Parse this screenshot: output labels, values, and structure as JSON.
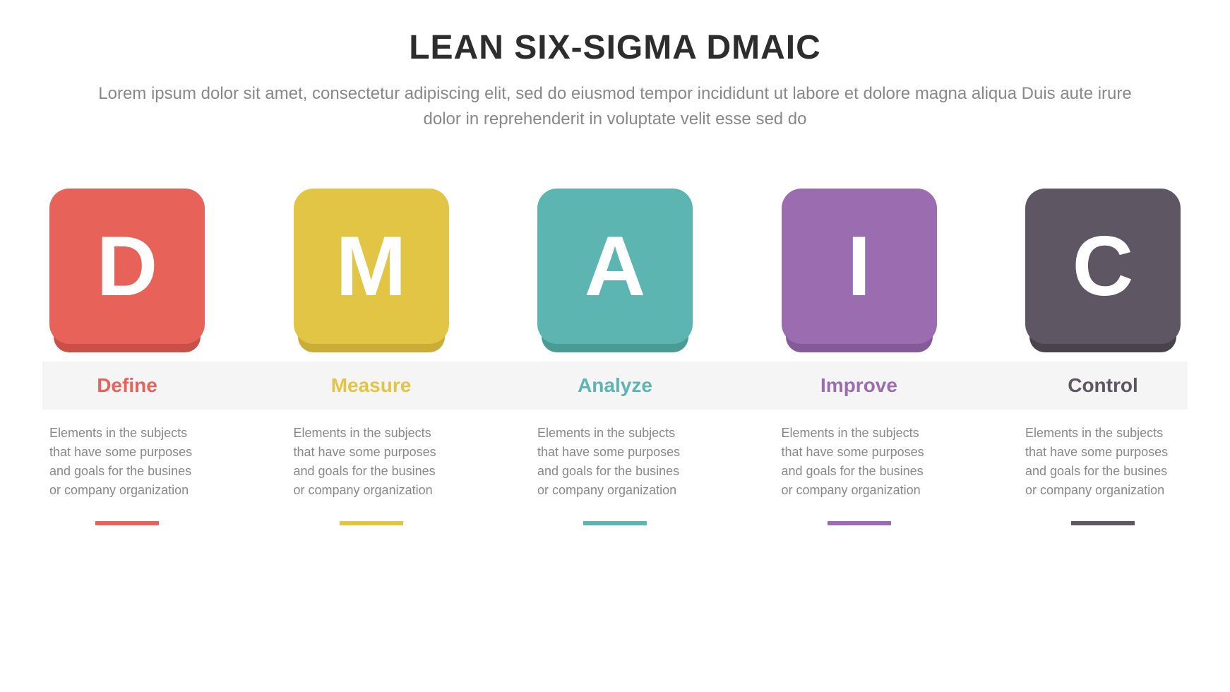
{
  "header": {
    "title": "LEAN SIX-SIGMA DMAIC",
    "subtitle": "Lorem ipsum dolor sit amet, consectetur adipiscing elit, sed do eiusmod tempor incididunt ut labore et dolore magna aliqua Duis aute irure dolor in reprehenderit in voluptate velit esse sed do"
  },
  "styling": {
    "background_color": "#ffffff",
    "title_color": "#2d2d2d",
    "title_fontsize": 48,
    "subtitle_color": "#888888",
    "subtitle_fontsize": 24,
    "label_band_bg": "#f5f5f5",
    "desc_color": "#888888",
    "card_letter_color": "#ffffff",
    "card_size": 220,
    "card_border_radius": 28,
    "card_letter_fontsize": 120,
    "label_fontsize": 28,
    "desc_fontsize": 18,
    "underline_width": 90,
    "underline_height": 6
  },
  "items": [
    {
      "letter": "D",
      "label": "Define",
      "description": "Elements in the subjects that have some purposes and goals for the  busines or company organization",
      "color": "#e7635a",
      "shadow_color": "#c94f47"
    },
    {
      "letter": "M",
      "label": "Measure",
      "description": "Elements in the subjects that have some purposes and goals for the  busines or company organization",
      "color": "#e3c545",
      "shadow_color": "#c9ad36"
    },
    {
      "letter": "A",
      "label": "Analyze",
      "description": "Elements in the subjects that have some purposes and goals for the  busines or company organization",
      "color": "#5cb5b0",
      "shadow_color": "#4a9b96"
    },
    {
      "letter": "I",
      "label": "Improve",
      "description": "Elements in the subjects that have some purposes and goals for the  busines or company organization",
      "color": "#9b6cb0",
      "shadow_color": "#845a98"
    },
    {
      "letter": "C",
      "label": "Control",
      "description": "Elements in the subjects that have some purposes and goals for the  busines or company organization",
      "color": "#5e5662",
      "shadow_color": "#4a434e"
    }
  ]
}
